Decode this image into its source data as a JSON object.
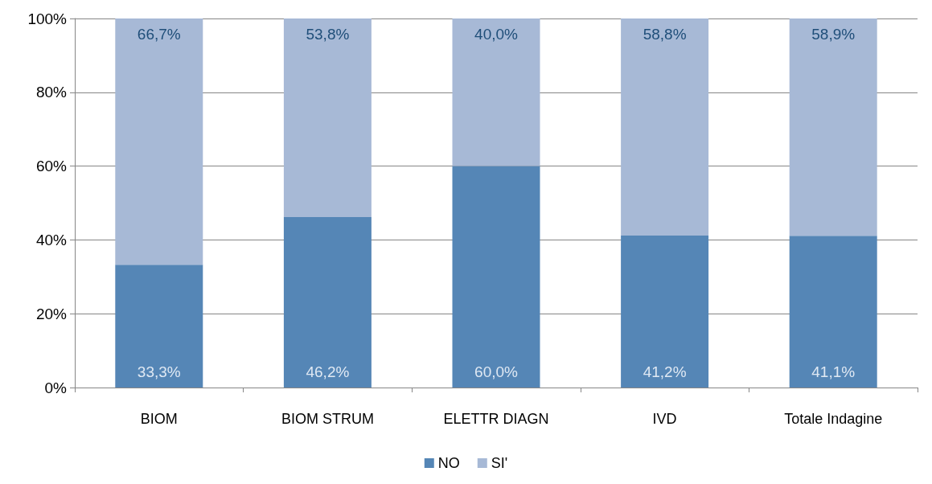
{
  "chart_data": {
    "type": "bar",
    "stacked": true,
    "categories": [
      "BIOM",
      "BIOM STRUM",
      "ELETTR DIAGN",
      "IVD",
      "Totale Indagine"
    ],
    "series": [
      {
        "name": "NO",
        "color": "#5586b6",
        "values": [
          33.3,
          46.2,
          60.0,
          41.2,
          41.1
        ],
        "value_labels": [
          "33,3%",
          "46,2%",
          "60,0%",
          "41,2%",
          "41,1%"
        ]
      },
      {
        "name": "SI'",
        "color": "#a7b9d6",
        "values": [
          66.7,
          53.8,
          40.0,
          58.8,
          58.9
        ],
        "value_labels": [
          "66,7%",
          "53,8%",
          "40,0%",
          "58,8%",
          "58,9%"
        ]
      }
    ],
    "ylim": [
      0,
      100
    ],
    "yticks": [
      {
        "value": 0,
        "label": "0%"
      },
      {
        "value": 20,
        "label": "20%"
      },
      {
        "value": 40,
        "label": "40%"
      },
      {
        "value": 60,
        "label": "60%"
      },
      {
        "value": 80,
        "label": "80%"
      },
      {
        "value": 100,
        "label": "100%"
      }
    ],
    "grid": "y",
    "legend": "bottom"
  }
}
